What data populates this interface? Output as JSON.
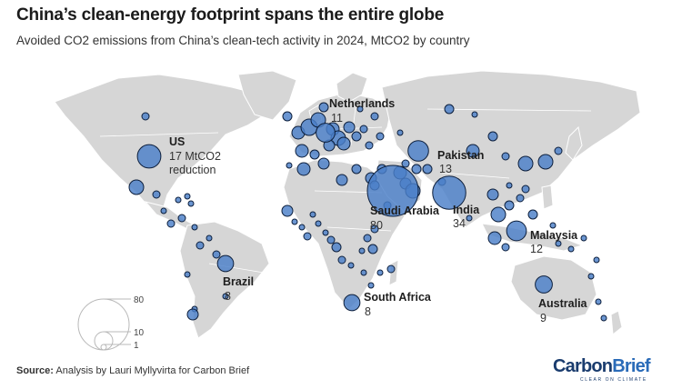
{
  "title": "China’s clean-energy footprint spans the entire globe",
  "subtitle": "Avoided CO2 emissions from China’s clean-tech activity in 2024, MtCO2 by country",
  "source_label": "Source:",
  "source_text": "Analysis by Lauri Myllyvirta for Carbon Brief",
  "logo": {
    "word1": "Carbon",
    "word2": "Brief",
    "tagline": "CLEAR ON CLIMATE"
  },
  "colors": {
    "bubble": "#4a7fc8",
    "bubble_stroke": "#0d1f3c",
    "land": "#d6d6d6"
  },
  "legend": {
    "values": [
      80,
      10,
      1
    ],
    "labels": [
      "80",
      "10",
      "1"
    ]
  },
  "chart_data": {
    "type": "bubble-map",
    "title": "China’s clean-energy footprint spans the entire globe",
    "subtitle": "Avoided CO2 emissions from China’s clean-tech activity in 2024, MtCO2 by country",
    "unit": "MtCO2",
    "labeled_countries": [
      {
        "name": "US",
        "value": 17,
        "value_text": "17 MtCO2",
        "extra": "reduction"
      },
      {
        "name": "Netherlands",
        "value": 11,
        "value_text": "11"
      },
      {
        "name": "Pakistan",
        "value": 13,
        "value_text": "13"
      },
      {
        "name": "Saudi Arabia",
        "value": 80,
        "value_text": "80"
      },
      {
        "name": "India",
        "value": 34,
        "value_text": "34"
      },
      {
        "name": "Malaysia",
        "value": 12,
        "value_text": "12"
      },
      {
        "name": "Brazil",
        "value": 8,
        "value_text": "8"
      },
      {
        "name": "South Africa",
        "value": 8,
        "value_text": "8"
      },
      {
        "name": "Australia",
        "value": 9,
        "value_text": "9"
      }
    ]
  }
}
